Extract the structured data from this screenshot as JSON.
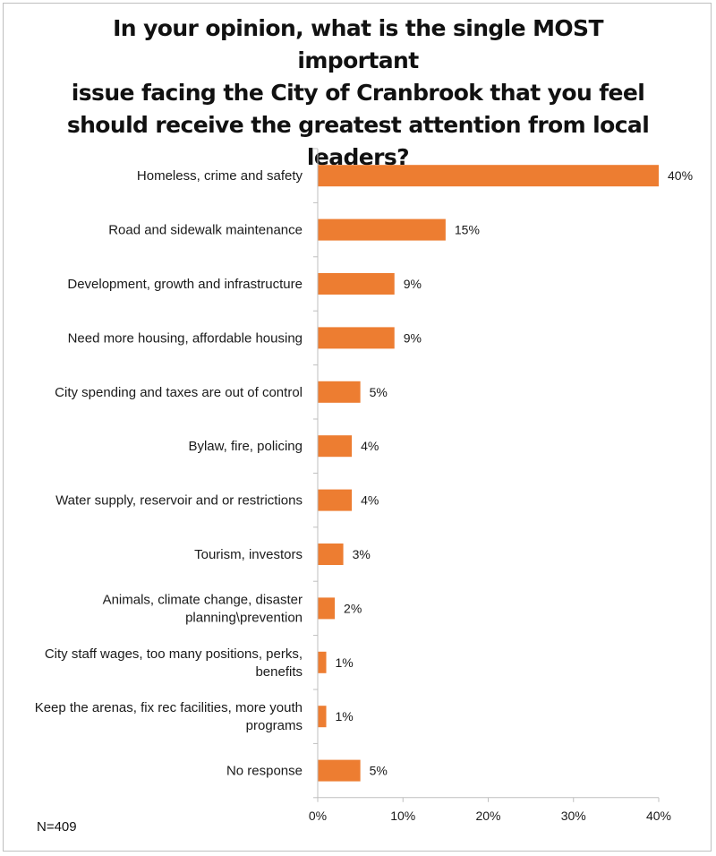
{
  "chart_data": {
    "type": "bar",
    "orientation": "horizontal",
    "title_lines": [
      "In your opinion, what is the single MOST important",
      "issue facing the City of Cranbrook that you feel",
      "should receive the greatest attention from local",
      "leaders?"
    ],
    "categories": [
      [
        "Homeless, crime and safety"
      ],
      [
        "Road and sidewalk maintenance"
      ],
      [
        "Development, growth and infrastructure"
      ],
      [
        "Need more housing, affordable housing"
      ],
      [
        "City spending and taxes are out of control"
      ],
      [
        "Bylaw, fire, policing"
      ],
      [
        "Water supply, reservoir and or restrictions"
      ],
      [
        "Tourism, investors"
      ],
      [
        "Animals, climate change, disaster",
        "planning\\prevention"
      ],
      [
        "City staff wages, too many positions, perks,",
        "benefits"
      ],
      [
        "Keep the arenas, fix rec facilities, more youth",
        "programs"
      ],
      [
        "No response"
      ]
    ],
    "values": [
      40,
      15,
      9,
      9,
      5,
      4,
      4,
      3,
      2,
      1,
      1,
      5
    ],
    "data_labels": [
      "40%",
      "15%",
      "9%",
      "9%",
      "5%",
      "4%",
      "4%",
      "3%",
      "2%",
      "1%",
      "1%",
      "5%"
    ],
    "x_ticks": [
      0,
      10,
      20,
      30,
      40
    ],
    "x_tick_labels": [
      "0%",
      "10%",
      "20%",
      "30%",
      "40%"
    ],
    "xlim": [
      0,
      40
    ],
    "bar_color": "#ed7d31",
    "grid": false,
    "legend": "none"
  },
  "footnote": "N=409"
}
